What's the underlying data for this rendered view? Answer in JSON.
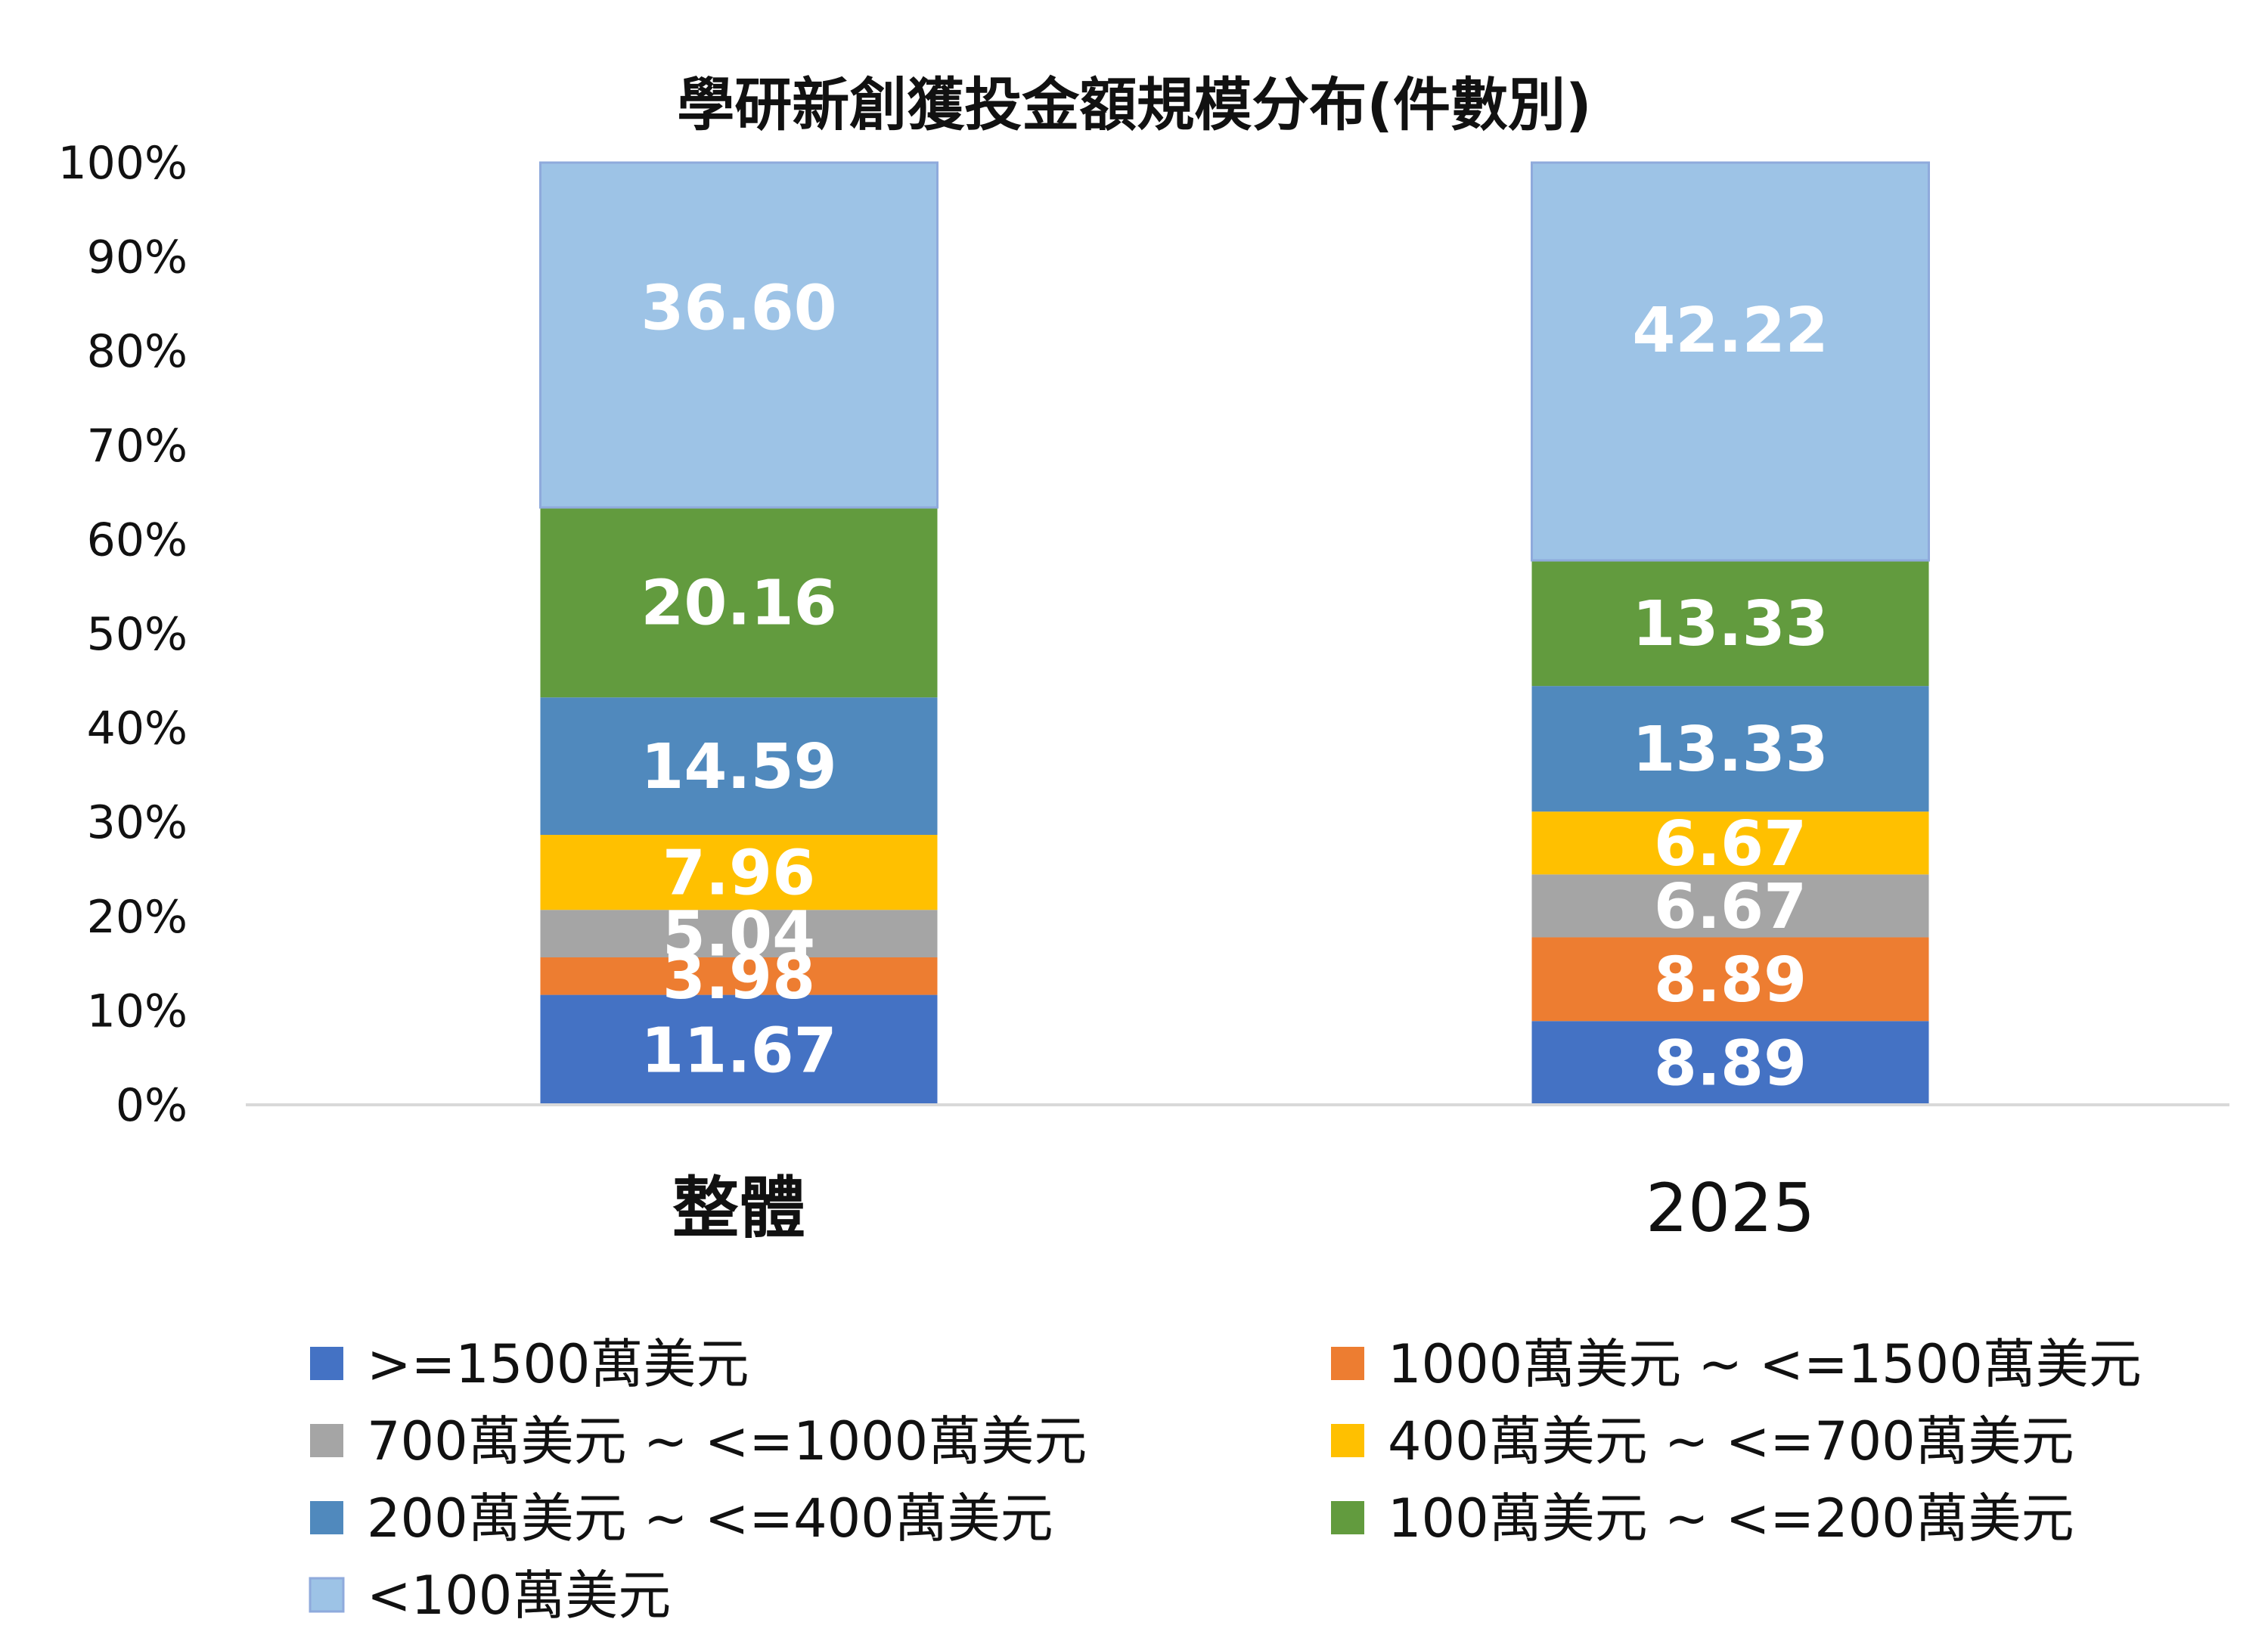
{
  "chart_data": {
    "type": "bar",
    "stacked": true,
    "percent_stacked": true,
    "title": "學研新創獲投金額規模分布(件數別)",
    "categories": [
      "整體",
      "2025"
    ],
    "category_bold": [
      true,
      false
    ],
    "y_ticks": [
      "0%",
      "10%",
      "20%",
      "30%",
      "40%",
      "50%",
      "60%",
      "70%",
      "80%",
      "90%",
      "100%"
    ],
    "ylim": [
      0,
      100
    ],
    "legend_position": "bottom",
    "grid": false,
    "series": [
      {
        "name": ">=1500萬美元",
        "color": "#4472C4",
        "values": [
          11.67,
          8.89
        ],
        "labels": [
          "11.67",
          "8.89"
        ]
      },
      {
        "name": "1000萬美元 ~ <=1500萬美元",
        "color": "#ED7D31",
        "values": [
          3.98,
          8.89
        ],
        "labels": [
          "3.98",
          "8.89"
        ]
      },
      {
        "name": "700萬美元 ~ <=1000萬美元",
        "color": "#A5A5A5",
        "values": [
          5.04,
          6.67
        ],
        "labels": [
          "5.04",
          "6.67"
        ]
      },
      {
        "name": "400萬美元 ~ <=700萬美元",
        "color": "#FFC000",
        "values": [
          7.96,
          6.67
        ],
        "labels": [
          "7.96",
          "6.67"
        ]
      },
      {
        "name": "200萬美元 ~ <=400萬美元",
        "color": "#5089BD",
        "values": [
          14.59,
          13.33
        ],
        "labels": [
          "14.59",
          "13.33"
        ]
      },
      {
        "name": "100萬美元 ~ <=200萬美元",
        "color": "#629B3E",
        "values": [
          20.16,
          13.33
        ],
        "labels": [
          "20.16",
          "13.33"
        ]
      },
      {
        "name": "<100萬美元",
        "color": "#9DC3E6",
        "values": [
          36.6,
          42.22
        ],
        "labels": [
          "36.60",
          "42.22"
        ]
      }
    ]
  }
}
